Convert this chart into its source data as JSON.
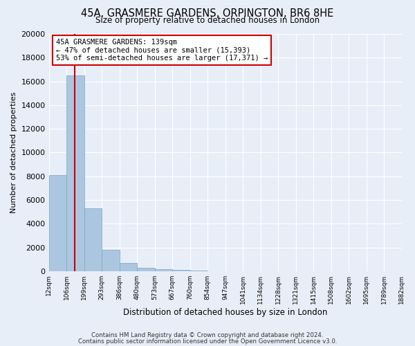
{
  "title": "45A, GRASMERE GARDENS, ORPINGTON, BR6 8HE",
  "subtitle": "Size of property relative to detached houses in London",
  "xlabel": "Distribution of detached houses by size in London",
  "ylabel": "Number of detached properties",
  "bar_values": [
    8100,
    16500,
    5300,
    1800,
    700,
    300,
    150,
    100,
    50,
    20,
    10,
    5,
    3,
    2,
    1,
    1,
    0,
    0,
    0,
    0
  ],
  "bin_labels": [
    "12sqm",
    "106sqm",
    "199sqm",
    "293sqm",
    "386sqm",
    "480sqm",
    "573sqm",
    "667sqm",
    "760sqm",
    "854sqm",
    "947sqm",
    "1041sqm",
    "1134sqm",
    "1228sqm",
    "1321sqm",
    "1415sqm",
    "1508sqm",
    "1602sqm",
    "1695sqm",
    "1789sqm",
    "1882sqm"
  ],
  "bar_color": "#adc6e0",
  "bar_edge_color": "#6fa8cc",
  "vline_x": 1.47,
  "vline_color": "#cc0000",
  "ylim": [
    0,
    20000
  ],
  "yticks": [
    0,
    2000,
    4000,
    6000,
    8000,
    10000,
    12000,
    14000,
    16000,
    18000,
    20000
  ],
  "annotation_text": "45A GRASMERE GARDENS: 139sqm\n← 47% of detached houses are smaller (15,393)\n53% of semi-detached houses are larger (17,371) →",
  "annotation_box_color": "#ffffff",
  "annotation_box_edge": "#cc0000",
  "footer_line1": "Contains HM Land Registry data © Crown copyright and database right 2024.",
  "footer_line2": "Contains public sector information licensed under the Open Government Licence v3.0.",
  "bg_color": "#e8eef8",
  "plot_bg_color": "#e8eef8",
  "grid_color": "#ffffff"
}
